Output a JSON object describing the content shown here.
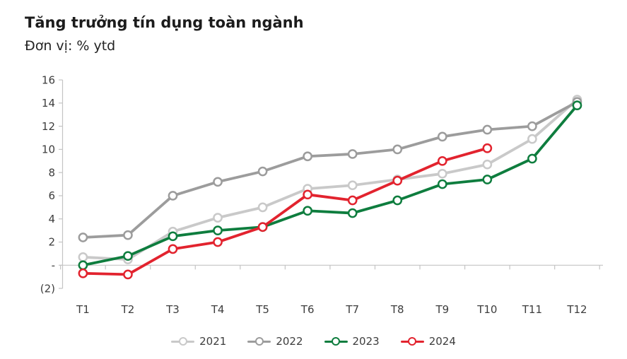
{
  "header": {
    "title": "Tăng trưởng tín dụng toàn ngành",
    "subtitle": "Đơn vị: % ytd"
  },
  "chart_data": {
    "type": "line",
    "title": "Tăng trưởng tín dụng toàn ngành",
    "unit_label": "Đơn vị: % ytd",
    "xlabel": "",
    "ylabel": "",
    "grid": false,
    "legend_position": "bottom",
    "categories": [
      "T1",
      "T2",
      "T3",
      "T4",
      "T5",
      "T6",
      "T7",
      "T8",
      "T9",
      "T10",
      "T11",
      "T12"
    ],
    "series": [
      {
        "name": "2021",
        "color": "#c9c9c9",
        "values": [
          0.7,
          0.5,
          2.9,
          4.1,
          5.0,
          6.6,
          6.9,
          7.4,
          7.9,
          8.7,
          10.9,
          14.3
        ]
      },
      {
        "name": "2022",
        "color": "#9c9c9c",
        "values": [
          2.4,
          2.6,
          6.0,
          7.2,
          8.1,
          9.4,
          9.6,
          10.0,
          11.1,
          11.7,
          12.0,
          14.1
        ]
      },
      {
        "name": "2023",
        "color": "#0e7d3e",
        "values": [
          0.0,
          0.8,
          2.5,
          3.0,
          3.3,
          4.7,
          4.5,
          5.6,
          7.0,
          7.4,
          9.2,
          13.8
        ]
      },
      {
        "name": "2024",
        "color": "#e2232e",
        "values": [
          -0.7,
          -0.8,
          1.4,
          2.0,
          3.3,
          6.1,
          5.6,
          7.3,
          9.0,
          10.1,
          null,
          null
        ]
      }
    ],
    "y_axis": {
      "min": -2,
      "max": 16,
      "tick_step": 2,
      "tick_values": [
        16,
        14,
        12,
        10,
        8,
        6,
        4,
        2,
        0,
        -2
      ],
      "tick_labels": [
        "16",
        "14",
        "12",
        "10",
        "8",
        "6",
        "4",
        "2",
        "-",
        "(2)"
      ]
    },
    "axis_color": "#c4c4c4",
    "tick_text_color": "#3d3d3d",
    "marker_style": "open-circle"
  }
}
